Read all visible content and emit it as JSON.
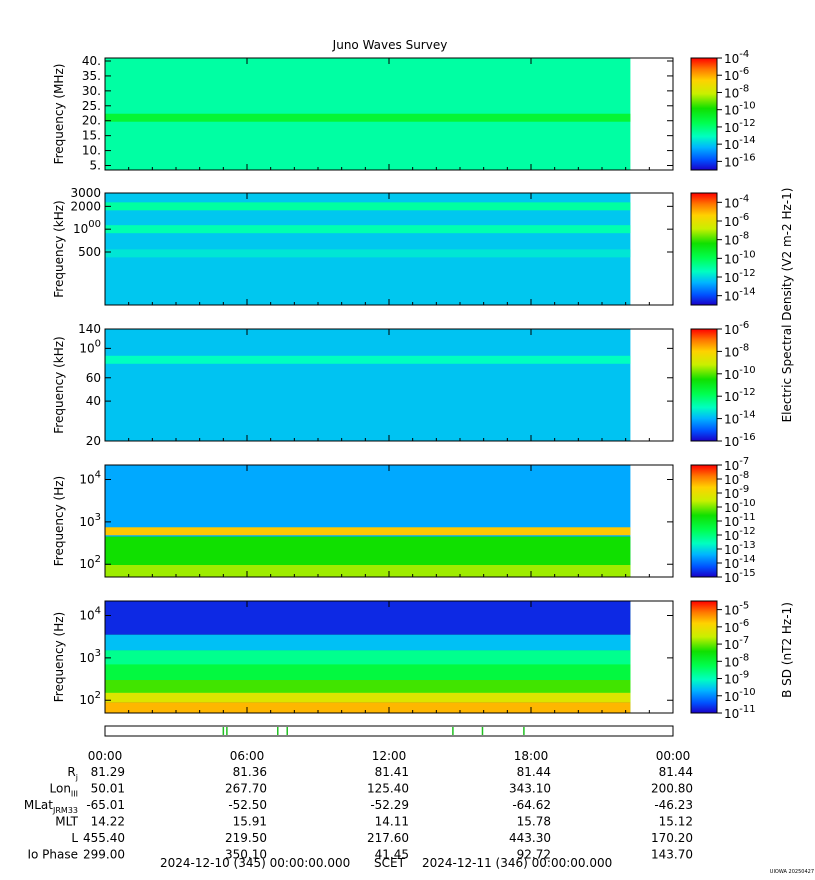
{
  "title": "Juno Waves Survey",
  "chart_data": [
    {
      "type": "heatmap",
      "panel": "spectrogram-1",
      "ylabel": "Frequency (MHz)",
      "ylim": [
        3.5,
        41
      ],
      "yscale": "linear",
      "yticks": [
        "40.",
        "35.",
        "30.",
        "25.",
        "20.",
        "15.",
        "10.",
        "5."
      ],
      "ytick_values": [
        40,
        35,
        30,
        25,
        20,
        15,
        10,
        5
      ],
      "colorbar": {
        "min_exp": -17,
        "max_exp": -4,
        "labels": [
          "10-4",
          "10-6",
          "10-8",
          "10-10",
          "10-12",
          "10-14",
          "10-16"
        ],
        "label_exps": [
          -4,
          -6,
          -8,
          -10,
          -12,
          -14,
          -16
        ]
      },
      "features": [
        {
          "kind": "band",
          "freq": 21,
          "value_exp": -11
        }
      ],
      "background_exp": -12.7,
      "data_end_hour": 22.2
    },
    {
      "type": "heatmap",
      "panel": "spectrogram-2",
      "ylabel": "Frequency (kHz)",
      "ylim": [
        100,
        3000
      ],
      "yscale": "log",
      "yticks": [
        "3000",
        "2000",
        "1000",
        "500"
      ],
      "ytick_values": [
        3000,
        2000,
        1000,
        500
      ],
      "colorbar": {
        "min_exp": -15,
        "max_exp": -3,
        "labels": [
          "10-4",
          "10-6",
          "10-8",
          "10-10",
          "10-12",
          "10-14"
        ],
        "label_exps": [
          -4,
          -6,
          -8,
          -10,
          -12,
          -14
        ]
      },
      "features": [
        {
          "kind": "band",
          "freq": 2000,
          "value_exp": -11
        },
        {
          "kind": "band",
          "freq": 1000,
          "value_exp": -11.2
        },
        {
          "kind": "band",
          "freq": 480,
          "value_exp": -11.8
        }
      ],
      "background_exp": -12.3,
      "data_end_hour": 22.2
    },
    {
      "type": "heatmap",
      "panel": "spectrogram-3",
      "ylabel": "Frequency (kHz)",
      "ylim": [
        20,
        140
      ],
      "yscale": "log",
      "yticks": [
        "140",
        "100",
        "60",
        "40",
        "20"
      ],
      "ytick_values": [
        140,
        100,
        60,
        40,
        20
      ],
      "colorbar": {
        "min_exp": -16,
        "max_exp": -6,
        "labels": [
          "10-6",
          "10-8",
          "10-10",
          "10-12",
          "10-14",
          "10-16"
        ],
        "label_exps": [
          -6,
          -8,
          -10,
          -12,
          -14,
          -16
        ]
      },
      "features": [
        {
          "kind": "band",
          "freq": 82,
          "value_exp": -13
        }
      ],
      "background_exp": -13.8,
      "data_end_hour": 22.2
    },
    {
      "type": "heatmap",
      "panel": "spectrogram-4",
      "ylabel": "Frequency (Hz)",
      "ylim": [
        50,
        22000
      ],
      "yscale": "log",
      "yticks": [
        "104",
        "103",
        "102"
      ],
      "ytick_values": [
        10000,
        1000,
        100
      ],
      "colorbar": {
        "min_exp": -15,
        "max_exp": -7,
        "labels": [
          "10-7",
          "10-8",
          "10-9",
          "10-10",
          "10-11",
          "10-12",
          "10-13",
          "10-14",
          "10-15"
        ],
        "label_exps": [
          -7,
          -8,
          -9,
          -10,
          -11,
          -12,
          -13,
          -14,
          -15
        ]
      },
      "features": [
        {
          "kind": "band",
          "freq": 600,
          "value_exp": -8.5
        }
      ],
      "background_exp": -13.5,
      "data_end_hour": 22.2
    },
    {
      "type": "heatmap",
      "panel": "spectrogram-5",
      "ylabel": "Frequency (Hz)",
      "ylim": [
        50,
        22000
      ],
      "yscale": "log",
      "yticks": [
        "104",
        "103",
        "102"
      ],
      "ytick_values": [
        10000,
        1000,
        100
      ],
      "colorbar": {
        "min_exp": -11,
        "max_exp": -4.5,
        "labels": [
          "10-5",
          "10-6",
          "10-7",
          "10-8",
          "10-9",
          "10-10",
          "10-11"
        ],
        "label_exps": [
          -5,
          -6,
          -7,
          -8,
          -9,
          -10,
          -11
        ]
      },
      "features": [],
      "background_exp": -8,
      "data_end_hour": 22.2
    }
  ],
  "colorbar_titles": {
    "electric": "Electric Spectral Density (V2 m-2 Hz-1)",
    "magnetic": "B SD (nT2 Hz-1)"
  },
  "x_axis": {
    "hour_range": [
      0,
      24
    ],
    "tick_hours": [
      0,
      6,
      12,
      18,
      24
    ],
    "tick_labels": [
      "00:00",
      "06:00",
      "12:00",
      "18:00",
      "00:00"
    ]
  },
  "ephemeris": [
    {
      "label": "Rj",
      "values": [
        "81.29",
        "81.36",
        "81.41",
        "81.44",
        "81.44"
      ]
    },
    {
      "label": "LonIII",
      "values": [
        "50.01",
        "267.70",
        "125.40",
        "343.10",
        "200.80"
      ]
    },
    {
      "label": "MLatJRM33",
      "values": [
        "-65.01",
        "-52.50",
        "-52.29",
        "-64.62",
        "-46.23"
      ]
    },
    {
      "label": "MLT",
      "values": [
        "14.22",
        "15.91",
        "14.11",
        "15.78",
        "15.12"
      ]
    },
    {
      "label": "L",
      "values": [
        "455.40",
        "219.50",
        "217.60",
        "443.30",
        "170.20"
      ]
    },
    {
      "label": "Io Phase",
      "values": [
        "299.00",
        "350.10",
        "41.45",
        "92.72",
        "143.70"
      ]
    }
  ],
  "footer": {
    "start": "2024-12-10 (345) 00:00:00.000",
    "scet": "SCET",
    "end": "2024-12-11 (346) 00:00:00.000",
    "stamp": "UIOWA 20250427"
  },
  "mode_bar": {
    "events_hours": [
      5.0,
      5.15,
      7.3,
      7.7,
      14.7,
      15.95,
      17.7
    ]
  }
}
